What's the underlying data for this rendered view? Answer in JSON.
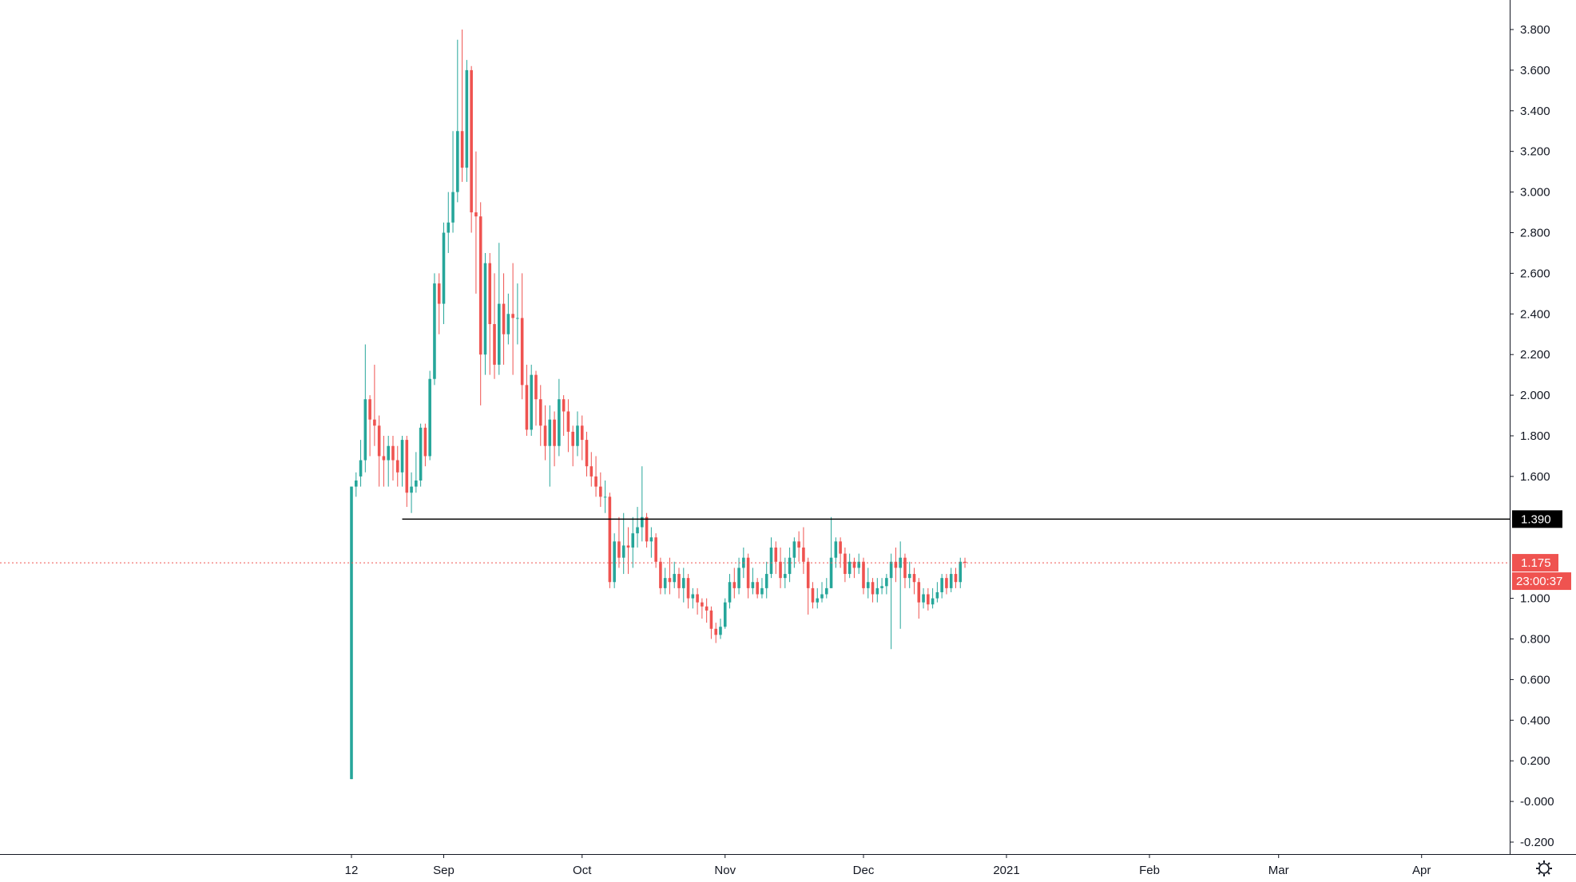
{
  "chart_data": {
    "type": "candlestick",
    "title": "",
    "xlabel": "",
    "ylabel": "",
    "ylim": [
      -0.25,
      3.93
    ],
    "y_ticks": [
      "3.800",
      "3.600",
      "3.400",
      "3.200",
      "3.000",
      "2.800",
      "2.600",
      "2.400",
      "2.200",
      "2.000",
      "1.800",
      "1.600",
      "1.000",
      "0.800",
      "0.600",
      "0.400",
      "0.200",
      "-0.000",
      "-0.200"
    ],
    "x_ticks": [
      "12",
      "Sep",
      "Oct",
      "Nov",
      "Dec",
      "2021",
      "Feb",
      "Mar",
      "Apr"
    ],
    "x_tick_dates": [
      "2020-08-12",
      "2020-09-01",
      "2020-10-01",
      "2020-11-01",
      "2020-12-01",
      "2021-01-01",
      "2021-02-01",
      "2021-03-01",
      "2021-04-01"
    ],
    "xlim": [
      "2020-07-25",
      "2021-04-26"
    ],
    "horizontal_line": {
      "value": 1.39,
      "label": "1.390",
      "from": "2020-08-23",
      "color": "#000000"
    },
    "last_price": {
      "value": 1.175,
      "label": "1.175",
      "countdown": "23:00:37",
      "color": "#ef5350"
    },
    "up_color": "#26a69a",
    "down_color": "#ef5350",
    "grid": false,
    "series": [
      {
        "start_date": "2020-08-12",
        "candles": [
          [
            0.11,
            1.55,
            0.11,
            1.55
          ],
          [
            1.55,
            1.58,
            1.62,
            1.5
          ],
          [
            1.6,
            1.68,
            1.78,
            1.55
          ],
          [
            1.68,
            1.98,
            2.25,
            1.62
          ],
          [
            1.98,
            1.88,
            2.0,
            1.7
          ],
          [
            1.88,
            1.85,
            2.15,
            1.75
          ],
          [
            1.85,
            1.7,
            1.9,
            1.55
          ],
          [
            1.7,
            1.68,
            1.8,
            1.55
          ],
          [
            1.68,
            1.75,
            1.8,
            1.55
          ],
          [
            1.75,
            1.68,
            1.8,
            1.58
          ],
          [
            1.68,
            1.62,
            1.75,
            1.55
          ],
          [
            1.62,
            1.78,
            1.8,
            1.55
          ],
          [
            1.78,
            1.52,
            1.8,
            1.45
          ],
          [
            1.52,
            1.55,
            1.62,
            1.42
          ],
          [
            1.55,
            1.58,
            1.72,
            1.52
          ],
          [
            1.58,
            1.84,
            1.86,
            1.55
          ],
          [
            1.84,
            1.7,
            1.86,
            1.65
          ],
          [
            1.7,
            2.08,
            2.12,
            1.68
          ],
          [
            2.08,
            2.55,
            2.6,
            2.05
          ],
          [
            2.55,
            2.45,
            2.6,
            2.3
          ],
          [
            2.45,
            2.8,
            2.85,
            2.35
          ],
          [
            2.8,
            2.85,
            3.0,
            2.7
          ],
          [
            2.85,
            3.0,
            3.3,
            2.8
          ],
          [
            3.0,
            3.3,
            3.75,
            2.95
          ],
          [
            3.3,
            3.12,
            3.8,
            3.05
          ],
          [
            3.12,
            3.6,
            3.65,
            3.05
          ],
          [
            3.6,
            2.9,
            3.62,
            2.8
          ],
          [
            2.9,
            2.88,
            3.2,
            2.5
          ],
          [
            2.88,
            2.2,
            2.95,
            1.95
          ],
          [
            2.2,
            2.65,
            2.7,
            2.1
          ],
          [
            2.65,
            2.35,
            2.7,
            2.1
          ],
          [
            2.35,
            2.15,
            2.6,
            2.08
          ],
          [
            2.15,
            2.45,
            2.75,
            2.1
          ],
          [
            2.45,
            2.3,
            2.6,
            2.15
          ],
          [
            2.3,
            2.4,
            2.5,
            2.25
          ],
          [
            2.4,
            2.38,
            2.65,
            2.1
          ],
          [
            2.38,
            2.38,
            2.55,
            2.25
          ],
          [
            2.38,
            2.05,
            2.6,
            1.98
          ],
          [
            2.05,
            1.83,
            2.15,
            1.8
          ],
          [
            1.83,
            2.1,
            2.15,
            1.8
          ],
          [
            2.1,
            1.98,
            2.12,
            1.85
          ],
          [
            1.98,
            1.85,
            2.05,
            1.75
          ],
          [
            1.85,
            1.75,
            1.95,
            1.68
          ],
          [
            1.75,
            1.88,
            1.95,
            1.55
          ],
          [
            1.88,
            1.75,
            1.92,
            1.65
          ],
          [
            1.75,
            1.98,
            2.08,
            1.7
          ],
          [
            1.98,
            1.92,
            2.0,
            1.8
          ],
          [
            1.92,
            1.82,
            1.98,
            1.72
          ],
          [
            1.82,
            1.75,
            1.85,
            1.65
          ],
          [
            1.75,
            1.85,
            1.92,
            1.7
          ],
          [
            1.85,
            1.78,
            1.9,
            1.68
          ],
          [
            1.78,
            1.65,
            1.82,
            1.6
          ],
          [
            1.65,
            1.6,
            1.72,
            1.55
          ],
          [
            1.6,
            1.55,
            1.7,
            1.5
          ],
          [
            1.55,
            1.5,
            1.62,
            1.45
          ],
          [
            1.5,
            1.5,
            1.58,
            1.42
          ],
          [
            1.5,
            1.08,
            1.52,
            1.05
          ],
          [
            1.08,
            1.28,
            1.32,
            1.05
          ],
          [
            1.28,
            1.2,
            1.4,
            1.15
          ],
          [
            1.2,
            1.26,
            1.42,
            1.12
          ],
          [
            1.26,
            1.25,
            1.35,
            1.12
          ],
          [
            1.25,
            1.32,
            1.4,
            1.15
          ],
          [
            1.32,
            1.35,
            1.45,
            1.25
          ],
          [
            1.35,
            1.4,
            1.65,
            1.28
          ],
          [
            1.4,
            1.28,
            1.42,
            1.25
          ],
          [
            1.28,
            1.3,
            1.35,
            1.2
          ],
          [
            1.3,
            1.18,
            1.32,
            1.15
          ],
          [
            1.18,
            1.05,
            1.2,
            1.02
          ],
          [
            1.05,
            1.1,
            1.15,
            1.02
          ],
          [
            1.1,
            1.08,
            1.2,
            1.02
          ],
          [
            1.08,
            1.12,
            1.18,
            1.05
          ],
          [
            1.12,
            1.05,
            1.15,
            1.0
          ],
          [
            1.05,
            1.1,
            1.15,
            0.98
          ],
          [
            1.1,
            1.0,
            1.12,
            0.95
          ],
          [
            1.0,
            1.02,
            1.05,
            0.95
          ],
          [
            1.02,
            0.98,
            1.05,
            0.92
          ],
          [
            0.98,
            0.96,
            1.0,
            0.9
          ],
          [
            0.96,
            0.94,
            1.0,
            0.88
          ],
          [
            0.94,
            0.85,
            0.96,
            0.8
          ],
          [
            0.85,
            0.82,
            0.88,
            0.78
          ],
          [
            0.82,
            0.86,
            0.9,
            0.8
          ],
          [
            0.86,
            0.98,
            1.0,
            0.85
          ],
          [
            0.98,
            1.08,
            1.12,
            0.95
          ],
          [
            1.08,
            1.05,
            1.15,
            1.0
          ],
          [
            1.05,
            1.15,
            1.2,
            1.02
          ],
          [
            1.15,
            1.2,
            1.25,
            1.1
          ],
          [
            1.2,
            1.05,
            1.22,
            1.0
          ],
          [
            1.05,
            1.08,
            1.15,
            1.02
          ],
          [
            1.08,
            1.02,
            1.1,
            1.0
          ],
          [
            1.02,
            1.05,
            1.1,
            1.0
          ],
          [
            1.05,
            1.12,
            1.18,
            1.0
          ],
          [
            1.12,
            1.25,
            1.3,
            1.1
          ],
          [
            1.25,
            1.18,
            1.28,
            1.12
          ],
          [
            1.18,
            1.1,
            1.25,
            1.05
          ],
          [
            1.1,
            1.12,
            1.2,
            1.05
          ],
          [
            1.12,
            1.2,
            1.25,
            1.08
          ],
          [
            1.2,
            1.28,
            1.3,
            1.15
          ],
          [
            1.28,
            1.25,
            1.33,
            1.18
          ],
          [
            1.25,
            1.18,
            1.35,
            1.12
          ],
          [
            1.18,
            1.05,
            1.2,
            0.92
          ],
          [
            1.05,
            0.98,
            1.08,
            0.95
          ],
          [
            0.98,
            1.0,
            1.05,
            0.95
          ],
          [
            1.0,
            1.02,
            1.08,
            0.98
          ],
          [
            1.02,
            1.05,
            1.1,
            1.0
          ],
          [
            1.05,
            1.2,
            1.4,
            1.05
          ],
          [
            1.2,
            1.28,
            1.3,
            1.15
          ],
          [
            1.28,
            1.22,
            1.3,
            1.15
          ],
          [
            1.22,
            1.12,
            1.25,
            1.08
          ],
          [
            1.12,
            1.18,
            1.22,
            1.1
          ],
          [
            1.18,
            1.15,
            1.2,
            1.1
          ],
          [
            1.15,
            1.18,
            1.22,
            1.12
          ],
          [
            1.18,
            1.05,
            1.2,
            1.02
          ],
          [
            1.05,
            1.08,
            1.15,
            1.0
          ],
          [
            1.08,
            1.02,
            1.1,
            0.98
          ],
          [
            1.02,
            1.05,
            1.1,
            0.98
          ],
          [
            1.05,
            1.06,
            1.1,
            1.02
          ],
          [
            1.06,
            1.1,
            1.12,
            1.02
          ],
          [
            1.1,
            1.18,
            1.22,
            0.75
          ],
          [
            1.18,
            1.15,
            1.25,
            1.08
          ],
          [
            1.15,
            1.2,
            1.28,
            0.85
          ],
          [
            1.2,
            1.1,
            1.22,
            1.05
          ],
          [
            1.1,
            1.12,
            1.18,
            1.05
          ],
          [
            1.12,
            1.08,
            1.15,
            1.02
          ],
          [
            1.08,
            0.98,
            1.1,
            0.9
          ],
          [
            0.98,
            1.02,
            1.05,
            0.95
          ],
          [
            1.02,
            0.97,
            1.05,
            0.94
          ],
          [
            0.97,
            1.0,
            1.05,
            0.95
          ],
          [
            1.0,
            1.03,
            1.08,
            0.98
          ],
          [
            1.03,
            1.1,
            1.12,
            1.0
          ],
          [
            1.1,
            1.05,
            1.12,
            1.02
          ],
          [
            1.05,
            1.12,
            1.15,
            1.03
          ],
          [
            1.12,
            1.08,
            1.15,
            1.05
          ],
          [
            1.08,
            1.18,
            1.2,
            1.05
          ],
          [
            1.18,
            1.175,
            1.2,
            1.15
          ]
        ]
      }
    ]
  },
  "chart_meta": {
    "settings_icon": "gear-icon",
    "axis_color": "#131722",
    "hline_badge_color": "#000000"
  }
}
